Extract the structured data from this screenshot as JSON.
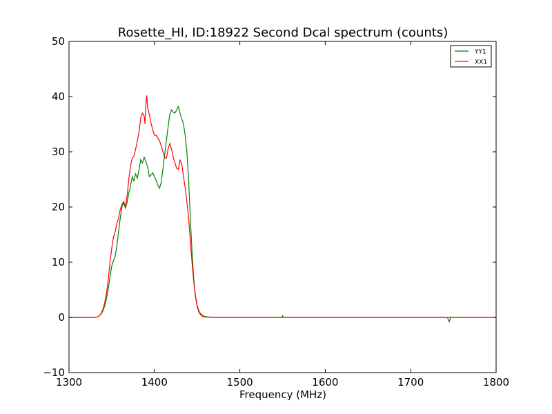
{
  "chart_data": {
    "type": "line",
    "title": "Rosette_HI, ID:18922 Second Dcal spectrum (counts)",
    "xlabel": "Frequency (MHz)",
    "ylabel": "",
    "xlim": [
      1300,
      1800
    ],
    "ylim": [
      -10,
      50
    ],
    "xticks": [
      1300,
      1400,
      1500,
      1600,
      1700,
      1800
    ],
    "yticks": [
      -10,
      0,
      10,
      20,
      30,
      40,
      50
    ],
    "grid": false,
    "legend_position": "top-right",
    "series": [
      {
        "name": "YY1",
        "color": "#008000",
        "points": [
          [
            1300,
            0
          ],
          [
            1330,
            0
          ],
          [
            1334,
            0.1
          ],
          [
            1336,
            0.4
          ],
          [
            1338,
            0.7
          ],
          [
            1340,
            1.3
          ],
          [
            1342,
            2.2
          ],
          [
            1344,
            3.5
          ],
          [
            1346,
            5.2
          ],
          [
            1348,
            7.3
          ],
          [
            1350,
            9.3
          ],
          [
            1352,
            10.3
          ],
          [
            1354,
            11.0
          ],
          [
            1356,
            13.0
          ],
          [
            1358,
            15.5
          ],
          [
            1360,
            18.0
          ],
          [
            1362,
            20.0
          ],
          [
            1364,
            20.8
          ],
          [
            1366,
            19.8
          ],
          [
            1368,
            20.8
          ],
          [
            1370,
            22.5
          ],
          [
            1372,
            23.8
          ],
          [
            1374,
            25.5
          ],
          [
            1376,
            24.7
          ],
          [
            1378,
            26.0
          ],
          [
            1380,
            25.2
          ],
          [
            1382,
            26.8
          ],
          [
            1384,
            28.6
          ],
          [
            1386,
            28.0
          ],
          [
            1388,
            29.0
          ],
          [
            1390,
            28.2
          ],
          [
            1392,
            27.3
          ],
          [
            1394,
            25.5
          ],
          [
            1396,
            25.8
          ],
          [
            1398,
            26.2
          ],
          [
            1400,
            25.5
          ],
          [
            1402,
            24.8
          ],
          [
            1404,
            24.0
          ],
          [
            1406,
            23.4
          ],
          [
            1408,
            24.5
          ],
          [
            1410,
            27.0
          ],
          [
            1412,
            29.5
          ],
          [
            1414,
            32.0
          ],
          [
            1416,
            34.5
          ],
          [
            1418,
            36.8
          ],
          [
            1420,
            37.6
          ],
          [
            1422,
            37.2
          ],
          [
            1424,
            37.0
          ],
          [
            1426,
            37.6
          ],
          [
            1428,
            38.2
          ],
          [
            1430,
            37.0
          ],
          [
            1432,
            36.0
          ],
          [
            1434,
            35.0
          ],
          [
            1436,
            33.0
          ],
          [
            1438,
            30.0
          ],
          [
            1440,
            25.0
          ],
          [
            1442,
            18.0
          ],
          [
            1444,
            12.0
          ],
          [
            1446,
            7.0
          ],
          [
            1448,
            4.0
          ],
          [
            1450,
            2.2
          ],
          [
            1452,
            1.2
          ],
          [
            1454,
            0.7
          ],
          [
            1456,
            0.4
          ],
          [
            1458,
            0.2
          ],
          [
            1462,
            0.1
          ],
          [
            1470,
            0
          ],
          [
            1549,
            0
          ],
          [
            1550,
            0.3
          ],
          [
            1551,
            0
          ],
          [
            1743,
            0
          ],
          [
            1745,
            -0.8
          ],
          [
            1747,
            0
          ],
          [
            1800,
            0
          ]
        ]
      },
      {
        "name": "XX1",
        "color": "#ff0000",
        "points": [
          [
            1300,
            0
          ],
          [
            1330,
            0
          ],
          [
            1334,
            0.1
          ],
          [
            1336,
            0.4
          ],
          [
            1338,
            0.8
          ],
          [
            1340,
            1.6
          ],
          [
            1342,
            2.8
          ],
          [
            1344,
            4.5
          ],
          [
            1346,
            6.8
          ],
          [
            1348,
            10.0
          ],
          [
            1350,
            12.5
          ],
          [
            1352,
            14.5
          ],
          [
            1354,
            15.5
          ],
          [
            1356,
            17.0
          ],
          [
            1358,
            18.0
          ],
          [
            1360,
            19.5
          ],
          [
            1362,
            20.5
          ],
          [
            1364,
            21.0
          ],
          [
            1366,
            20.0
          ],
          [
            1368,
            22.0
          ],
          [
            1370,
            25.0
          ],
          [
            1372,
            27.5
          ],
          [
            1374,
            28.8
          ],
          [
            1376,
            29.2
          ],
          [
            1378,
            30.5
          ],
          [
            1380,
            32.0
          ],
          [
            1382,
            33.5
          ],
          [
            1384,
            36.2
          ],
          [
            1386,
            37.0
          ],
          [
            1388,
            36.5
          ],
          [
            1389,
            35.0
          ],
          [
            1390,
            38.5
          ],
          [
            1391,
            40.2
          ],
          [
            1392,
            38.0
          ],
          [
            1394,
            36.8
          ],
          [
            1396,
            35.2
          ],
          [
            1398,
            34.0
          ],
          [
            1400,
            33.0
          ],
          [
            1402,
            33.0
          ],
          [
            1404,
            32.5
          ],
          [
            1406,
            32.0
          ],
          [
            1408,
            31.0
          ],
          [
            1410,
            30.0
          ],
          [
            1412,
            29.0
          ],
          [
            1414,
            28.8
          ],
          [
            1416,
            30.5
          ],
          [
            1418,
            31.5
          ],
          [
            1420,
            30.5
          ],
          [
            1422,
            29.0
          ],
          [
            1424,
            28.0
          ],
          [
            1426,
            27.0
          ],
          [
            1428,
            26.8
          ],
          [
            1430,
            28.5
          ],
          [
            1432,
            27.8
          ],
          [
            1434,
            25.5
          ],
          [
            1436,
            23.5
          ],
          [
            1438,
            21.0
          ],
          [
            1440,
            18.0
          ],
          [
            1442,
            14.0
          ],
          [
            1444,
            10.0
          ],
          [
            1446,
            6.5
          ],
          [
            1448,
            3.8
          ],
          [
            1450,
            2.0
          ],
          [
            1452,
            1.0
          ],
          [
            1454,
            0.5
          ],
          [
            1456,
            0.2
          ],
          [
            1458,
            0.1
          ],
          [
            1462,
            0.05
          ],
          [
            1470,
            0
          ],
          [
            1800,
            0
          ]
        ]
      }
    ]
  }
}
